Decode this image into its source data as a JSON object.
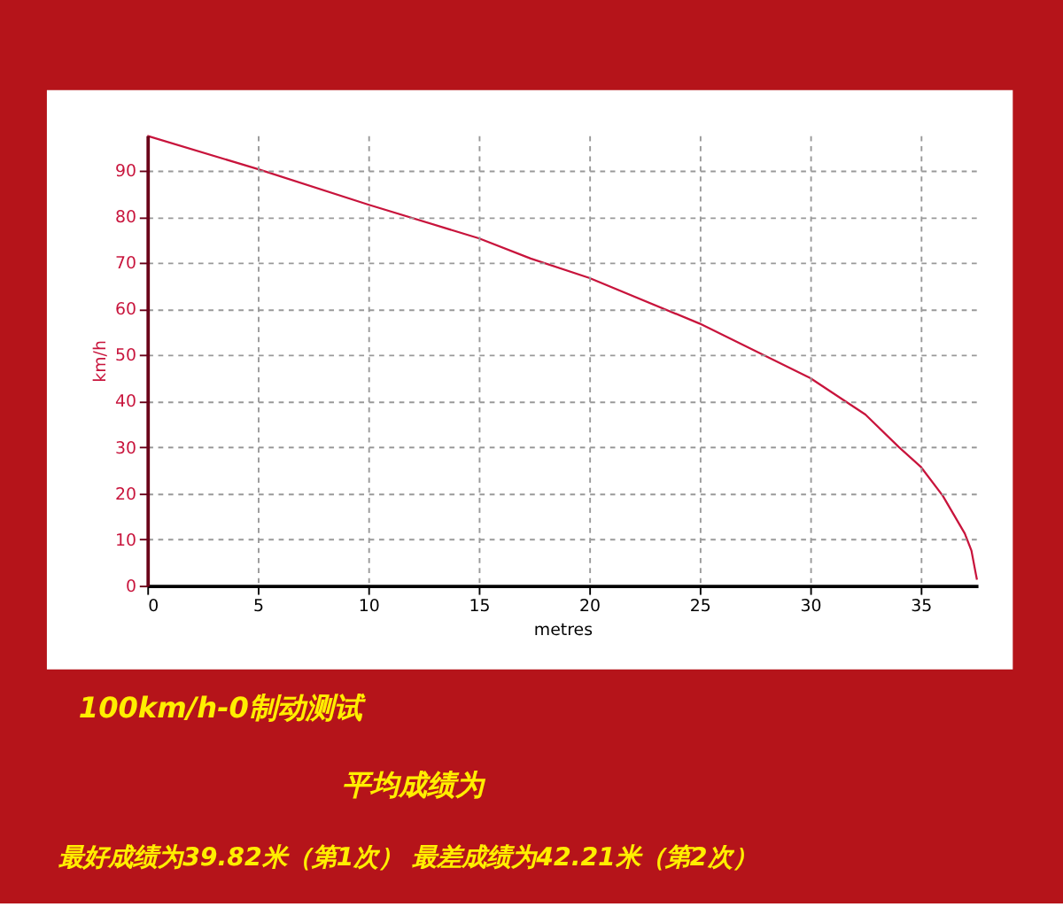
{
  "chart_data": {
    "type": "line",
    "xlabel": "metres",
    "ylabel": "km/h",
    "x": [
      0,
      5,
      10,
      15,
      17.35,
      20,
      25,
      30,
      32.5,
      34,
      35,
      36,
      37,
      37.3,
      37.5,
      37.55
    ],
    "series": [
      {
        "color": "#c8143c",
        "values": [
          97.5,
          90.3,
          82.6,
          75.3,
          70.9,
          66.7,
          56.8,
          45.0,
          37.1,
          30.1,
          25.8,
          19.5,
          11.3,
          7.6,
          2.5,
          1.3
        ]
      }
    ],
    "xlim": [
      0,
      37.58
    ],
    "xticks": [
      0,
      5,
      10,
      15,
      20,
      25,
      30,
      35
    ],
    "ylim": [
      0,
      97.6
    ],
    "yticks": [
      0,
      10,
      20,
      30,
      40,
      50,
      60,
      70,
      80,
      90
    ],
    "grid": true,
    "marker": "none",
    "line_style": "solid",
    "annotations": [
      "100km/h-0制动测试",
      "平均成绩为",
      "最好成绩为39.82米（第1次） 最差成绩为42.21米（第2次）"
    ]
  }
}
